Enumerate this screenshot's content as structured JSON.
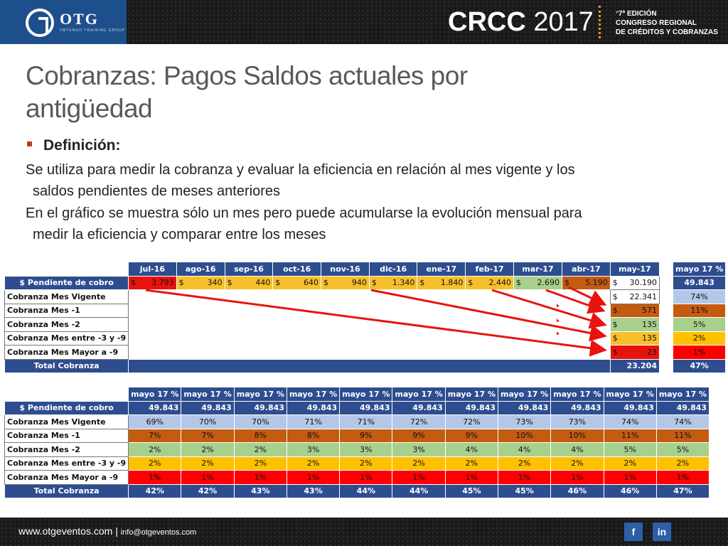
{
  "header": {
    "logo_text": "OTG",
    "logo_sub": "OBTENGO TRAINING GROUP",
    "event_bold": "CRCC",
    "event_year": "2017",
    "edition_line1": "7ª EDICIÓN",
    "edition_star": "*",
    "edition_line2": "CONGRESO REGIONAL",
    "edition_line3": "DE CRÉDITOS Y COBRANZAS"
  },
  "title_line1": "Cobranzas: Pagos Saldos actuales por",
  "title_line2": "antigüedad",
  "definition_label": "Definición:",
  "para1_line1": "Se utiliza para medir la cobranza y evaluar la eficiencia en relación al mes vigente y los",
  "para1_line2": "saldos pendientes de meses anteriores",
  "para2_line1": "En el gráfico se muestra sólo un mes pero puede acumularse la evolución mensual para",
  "para2_line2": "medir la eficiencia y comparar entre los meses",
  "table1": {
    "months": [
      "jul-16",
      "ago-16",
      "sep-16",
      "oct-16",
      "nov-16",
      "dic-16",
      "ene-17",
      "feb-17",
      "mar-17",
      "abr-17",
      "may-17"
    ],
    "side_header": "mayo 17 %",
    "currency": "$",
    "pending_label": "$ Pendiente de cobro",
    "pending_values": [
      "3.793",
      "340",
      "440",
      "640",
      "940",
      "1.340",
      "1.840",
      "2.440",
      "2.690",
      "5.190",
      "30.190"
    ],
    "pending_total": "49.843",
    "rows": [
      {
        "label": "Cobranza Mes Vigente",
        "value": "22.341",
        "pct": "74%"
      },
      {
        "label": "Cobranza Mes -1",
        "value": "571",
        "pct": "11%"
      },
      {
        "label": "Cobranza Mes -2",
        "value": "135",
        "pct": "5%"
      },
      {
        "label": "Cobranza Mes entre -3 y -9",
        "value": "135",
        "pct": "2%"
      },
      {
        "label": "Cobranza Mes Mayor a -9",
        "value": "23",
        "pct": "1%"
      }
    ],
    "total_label": "Total Cobranza",
    "total_value": "23.204",
    "total_pct": "47%"
  },
  "table2": {
    "headers": [
      "mayo 17 %",
      "mayo 17 %",
      "mayo 17 %",
      "mayo 17 %",
      "mayo 17 %",
      "mayo 17 %",
      "mayo 17 %",
      "mayo 17 %",
      "mayo 17 %",
      "mayo 17 %",
      "mayo 17 %"
    ],
    "pending_label": "$ Pendiente de cobro",
    "pending_values": [
      "49.843",
      "49.843",
      "49.843",
      "49.843",
      "49.843",
      "49.843",
      "49.843",
      "49.843",
      "49.843",
      "49.843",
      "49.843"
    ],
    "rows": [
      {
        "label": "Cobranza Mes Vigente",
        "values": [
          "69%",
          "70%",
          "70%",
          "71%",
          "71%",
          "72%",
          "72%",
          "73%",
          "73%",
          "74%",
          "74%"
        ]
      },
      {
        "label": "Cobranza Mes -1",
        "values": [
          "7%",
          "7%",
          "8%",
          "8%",
          "9%",
          "9%",
          "9%",
          "10%",
          "10%",
          "11%",
          "11%"
        ]
      },
      {
        "label": "Cobranza Mes -2",
        "values": [
          "2%",
          "2%",
          "2%",
          "3%",
          "3%",
          "3%",
          "4%",
          "4%",
          "4%",
          "5%",
          "5%"
        ]
      },
      {
        "label": "Cobranza Mes entre -3 y -9",
        "values": [
          "2%",
          "2%",
          "2%",
          "2%",
          "2%",
          "2%",
          "2%",
          "2%",
          "2%",
          "2%",
          "2%"
        ]
      },
      {
        "label": "Cobranza Mes Mayor a -9",
        "values": [
          "1%",
          "1%",
          "1%",
          "1%",
          "1%",
          "1%",
          "1%",
          "1%",
          "1%",
          "1%",
          "1%"
        ]
      }
    ],
    "total_label": "Total Cobranza",
    "total_values": [
      "42%",
      "42%",
      "43%",
      "43%",
      "44%",
      "44%",
      "45%",
      "45%",
      "46%",
      "46%",
      "47%"
    ]
  },
  "footer": {
    "website": "www.otgeventos.com",
    "separator": "|",
    "email": "info@otgeventos.com",
    "facebook": "f",
    "linkedin": "in"
  },
  "colors": {
    "header_blue": "#2e4d8f",
    "arrow_red": "#e8130f"
  }
}
